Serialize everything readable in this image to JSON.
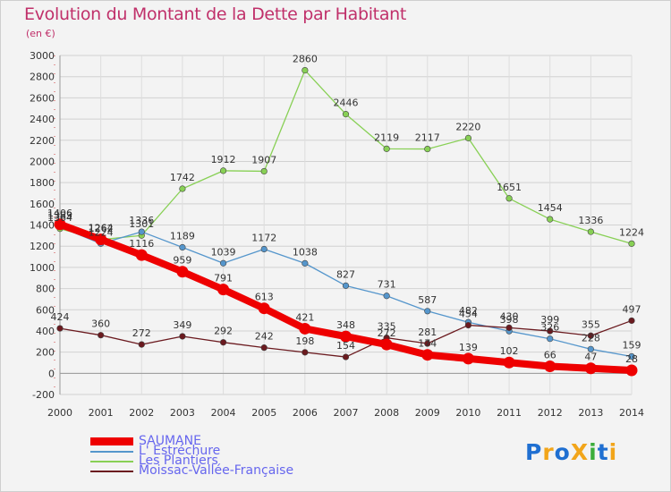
{
  "title": "Evolution du Montant de la Dette par Habitant",
  "subtitle": "(en €)",
  "logo": {
    "text": "ProXiti",
    "letters": [
      "P",
      "r",
      "o",
      "X",
      "i",
      "t",
      "i"
    ],
    "colors": [
      "#1f6fd1",
      "#f2a51a",
      "#1f6fd1",
      "#f2a51a",
      "#3cad3a",
      "#1f6fd1",
      "#f2a51a"
    ]
  },
  "chart_data": {
    "type": "line",
    "x": [
      2000,
      2001,
      2002,
      2003,
      2004,
      2005,
      2006,
      2007,
      2008,
      2009,
      2010,
      2011,
      2012,
      2013,
      2014
    ],
    "xlabels": [
      "2000",
      "2001",
      "2002",
      "2003",
      "2004",
      "2005",
      "2006",
      "2007",
      "2008",
      "2009",
      "2010",
      "2011",
      "2012",
      "2013",
      "2014"
    ],
    "ylim": [
      -200,
      3000
    ],
    "yticks": [
      -200,
      0,
      200,
      400,
      600,
      800,
      1000,
      1200,
      1400,
      1600,
      1800,
      2000,
      2200,
      2400,
      2600,
      2800,
      3000
    ],
    "yticklabels": [
      "-200",
      "0",
      "200",
      "400",
      "600",
      "800",
      "1000",
      "1200",
      "1400",
      "1600",
      "1800",
      "2000",
      "2200",
      "2400",
      "2600",
      "2800",
      "3000"
    ],
    "grid": true,
    "legend_position": "bottom-left",
    "series": [
      {
        "name": "SAUMANE",
        "color": "#ee0000",
        "values": [
          1406,
          1264,
          1116,
          959,
          791,
          613,
          421,
          348,
          272,
          174,
          139,
          102,
          66,
          47,
          28
        ],
        "labels": [
          "1406",
          "1264",
          "1116",
          "959",
          "791",
          "613",
          "421",
          "348",
          "272",
          "174",
          "139",
          "102",
          "66",
          "47",
          "28"
        ]
      },
      {
        "name": "L' Estréchure",
        "color": "#5596cc",
        "values": [
          1383,
          1224,
          1336,
          1189,
          1039,
          1172,
          1038,
          827,
          731,
          587,
          482,
          398,
          326,
          228,
          159
        ],
        "labels": [
          "1383",
          "1224",
          "1336",
          "1189",
          "1039",
          "1172",
          "1038",
          "827",
          "731",
          "587",
          "482",
          "398",
          "326",
          "228",
          "159"
        ]
      },
      {
        "name": "Les Plantiers",
        "color": "#88d055",
        "values": [
          1364,
          1262,
          1301,
          1742,
          1912,
          1907,
          2860,
          2446,
          2119,
          2117,
          2220,
          1651,
          1454,
          1336,
          1224
        ],
        "labels": [
          "1364",
          "1262",
          "1301",
          "1742",
          "1912",
          "1907",
          "2860",
          "2446",
          "2119",
          "2117",
          "2220",
          "1651",
          "1454",
          "1336",
          "1224"
        ]
      },
      {
        "name": "Moissac-Vallée-Française",
        "color": "#6b1a1f",
        "values": [
          424,
          360,
          272,
          349,
          292,
          242,
          198,
          154,
          335,
          281,
          454,
          430,
          399,
          355,
          497
        ],
        "labels": [
          "424",
          "360",
          "272",
          "349",
          "292",
          "242",
          "198",
          "154",
          "335",
          "281",
          "454",
          "430",
          "399",
          "355",
          "497"
        ]
      }
    ]
  }
}
